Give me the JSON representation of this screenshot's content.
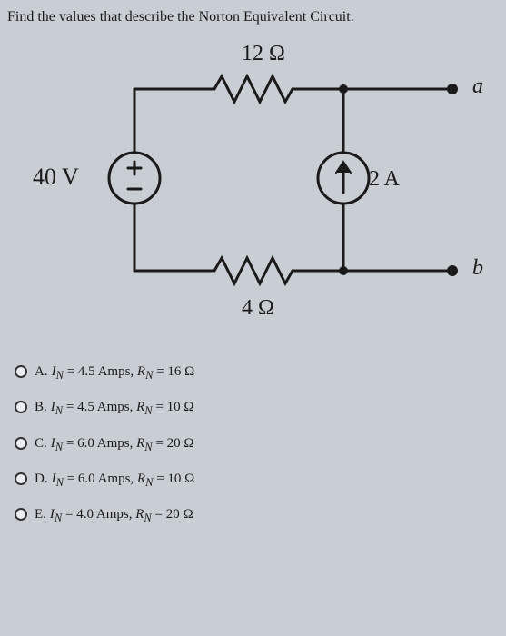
{
  "question": "Find the values that describe the Norton Equivalent Circuit.",
  "circuit": {
    "top_resistor": "12 Ω",
    "bottom_resistor": "4 Ω",
    "voltage_source": "40 V",
    "current_source": "2 A",
    "terminal_a": "a",
    "terminal_b": "b",
    "wire_color": "#1a1a1a",
    "node_fill": "#1a1a1a"
  },
  "options": [
    {
      "letter": "A.",
      "in_val": "4.5",
      "rn_val": "16"
    },
    {
      "letter": "B.",
      "in_val": "4.5",
      "rn_val": "10"
    },
    {
      "letter": "C.",
      "in_val": "6.0",
      "rn_val": "20"
    },
    {
      "letter": "D.",
      "in_val": "6.0",
      "rn_val": "10"
    },
    {
      "letter": "E.",
      "in_val": "4.0",
      "rn_val": "20"
    }
  ],
  "labels": {
    "in": "I",
    "in_sub": "N",
    "amps": "Amps",
    "rn": "R",
    "rn_sub": "N",
    "ohm": "Ω"
  }
}
